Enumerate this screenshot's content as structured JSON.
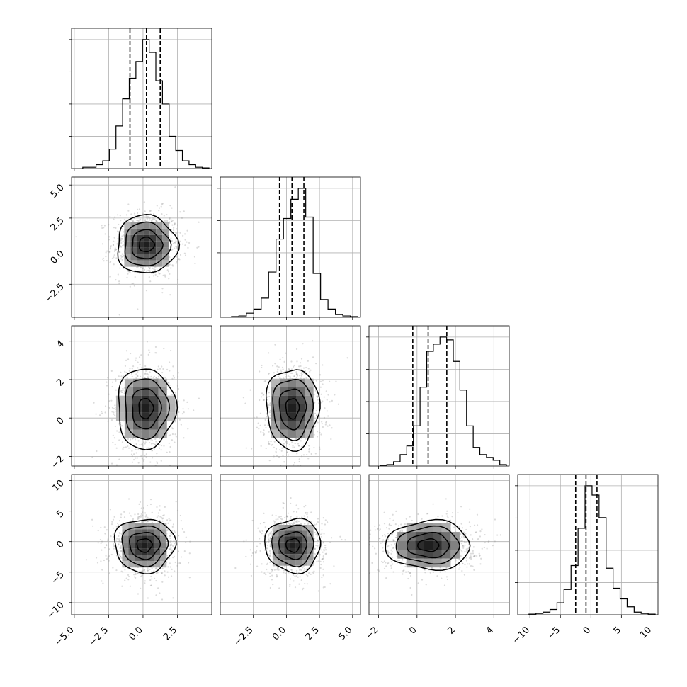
{
  "chart_data": {
    "type": "corner",
    "grid": true,
    "params": [
      {
        "range": [
          -5.2,
          5.0
        ],
        "ticks": [
          -5.0,
          -2.5,
          0.0,
          2.5
        ],
        "tick_labels": [
          "−5.0",
          "−2.5",
          "0.0",
          "2.5"
        ],
        "quantiles": [
          -0.95,
          0.25,
          1.25
        ]
      },
      {
        "range": [
          -5.0,
          5.6
        ],
        "ticks": [
          -2.5,
          0.0,
          2.5,
          5.0
        ],
        "tick_labels": [
          "−2.5",
          "0.0",
          "2.5",
          "5.0"
        ],
        "quantiles": [
          -0.52,
          0.42,
          1.32
        ]
      },
      {
        "range": [
          -2.5,
          4.8
        ],
        "ticks": [
          -2,
          0,
          2,
          4
        ],
        "tick_labels": [
          "−2",
          "0",
          "2",
          "4"
        ],
        "quantiles": [
          -0.22,
          0.58,
          1.55
        ]
      },
      {
        "range": [
          -12,
          11
        ],
        "ticks": [
          -10,
          -5,
          0,
          5,
          10
        ],
        "tick_labels": [
          "−10",
          "−5",
          "0",
          "5",
          "10"
        ],
        "quantiles": [
          -2.5,
          -0.8,
          1.0
        ]
      }
    ],
    "histograms": [
      {
        "counts": [
          1,
          1,
          3,
          6,
          15,
          33,
          54,
          70,
          83,
          100,
          90,
          68,
          50,
          25,
          14,
          6,
          3,
          1,
          0.5
        ]
      },
      {
        "counts": [
          0.5,
          1,
          3,
          6,
          14,
          33,
          57,
          72,
          86,
          94,
          73,
          32,
          13,
          6,
          2,
          1,
          0.5
        ]
      },
      {
        "counts": [
          0.5,
          1,
          3,
          8,
          14,
          28,
          55,
          80,
          85,
          90,
          88,
          73,
          53,
          28,
          13,
          8,
          6,
          4,
          1
        ]
      },
      {
        "counts": [
          0.5,
          1,
          2,
          4,
          9,
          19,
          37,
          65,
          97,
          90,
          73,
          35,
          20,
          12,
          6,
          2,
          1,
          0.5
        ]
      }
    ],
    "hist_ylim_frac": 1.0,
    "pairs": [
      {
        "row": 1,
        "col": 0,
        "center": [
          0.25,
          0.5
        ],
        "sd": [
          1.1,
          1.1
        ]
      },
      {
        "row": 2,
        "col": 0,
        "center": [
          0.2,
          0.5
        ],
        "sd": [
          1.05,
          1.05
        ]
      },
      {
        "row": 2,
        "col": 1,
        "center": [
          0.45,
          0.5
        ],
        "sd": [
          1.0,
          1.05
        ]
      },
      {
        "row": 3,
        "col": 0,
        "center": [
          0.1,
          -0.6
        ],
        "sd": [
          1.1,
          2.2
        ]
      },
      {
        "row": 3,
        "col": 1,
        "center": [
          0.5,
          -0.6
        ],
        "sd": [
          1.05,
          2.2
        ]
      },
      {
        "row": 3,
        "col": 2,
        "center": [
          0.6,
          -0.6
        ],
        "sd": [
          1.1,
          2.0
        ]
      }
    ]
  }
}
